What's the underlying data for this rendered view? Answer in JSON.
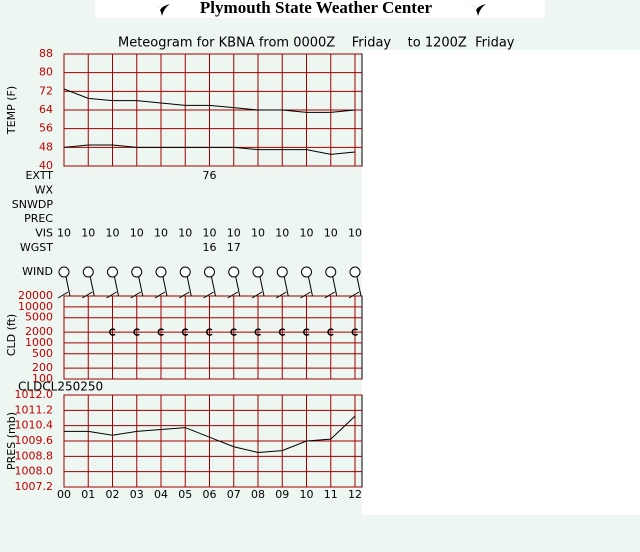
{
  "header": {
    "title": "Plymouth State Weather Center"
  },
  "title": "Meteogram for KBNA from 0000Z    Friday    to 1200Z  Friday",
  "hours": [
    "00",
    "01",
    "02",
    "03",
    "04",
    "05",
    "06",
    "07",
    "08",
    "09",
    "10",
    "11",
    "12"
  ],
  "rows": [
    {
      "label": "EXTT",
      "values": [
        null,
        null,
        null,
        null,
        null,
        null,
        76,
        null,
        null,
        null,
        null,
        null,
        null
      ]
    },
    {
      "label": "WX"
    },
    {
      "label": "SNWDP"
    },
    {
      "label": "PREC"
    },
    {
      "label": "VIS",
      "values": [
        10,
        10,
        10,
        10,
        10,
        10,
        10,
        10,
        10,
        10,
        10,
        10,
        10
      ]
    },
    {
      "label": "WGST",
      "values": [
        null,
        null,
        null,
        null,
        null,
        null,
        16,
        17,
        null,
        null,
        null,
        null,
        null
      ]
    }
  ],
  "wind_label": "WIND",
  "cloud_note": "CLDCL250250",
  "chart_data": [
    {
      "type": "line",
      "ylabel": "TEMP (F)",
      "ylim": [
        40,
        88
      ],
      "yticks": [
        40,
        48,
        56,
        64,
        72,
        80,
        88
      ],
      "grid": true,
      "series": [
        {
          "color": "#000000",
          "values": [
            73,
            69,
            68,
            68,
            67,
            66,
            66,
            65,
            64,
            64,
            63,
            63,
            64
          ]
        },
        {
          "color": "#000000",
          "values": [
            48,
            49,
            49,
            48,
            48,
            48,
            48,
            48,
            47,
            47,
            47,
            45,
            46
          ]
        }
      ]
    },
    {
      "type": "scatter",
      "ylabel": "CLD (ft)",
      "log_scale": true,
      "ylim": [
        100,
        20000
      ],
      "yticks": [
        100,
        200,
        500,
        1000,
        2000,
        5000,
        10000,
        20000
      ],
      "grid": true,
      "series": [
        {
          "color": "#000000",
          "values": [
            null,
            null,
            2000,
            2000,
            2000,
            2000,
            2000,
            2000,
            2000,
            2000,
            2000,
            2000,
            2000
          ]
        }
      ]
    },
    {
      "type": "line",
      "ylabel": "PRES (mb)",
      "ylim": [
        1007.2,
        1012.0
      ],
      "yticks": [
        1007.2,
        {
          "value": 1008,
          "label": "1008.0"
        },
        1008.8,
        1009.6,
        1010.4,
        1011.2,
        {
          "value": 1012,
          "label": "1012.0"
        }
      ],
      "grid": true,
      "series": [
        {
          "color": "#000000",
          "values": [
            1010.1,
            1010.1,
            1009.9,
            1010.1,
            1010.2,
            1010.3,
            1009.8,
            1009.3,
            1009.0,
            1009.1,
            1009.6,
            1009.7,
            1010.9
          ]
        }
      ]
    }
  ]
}
